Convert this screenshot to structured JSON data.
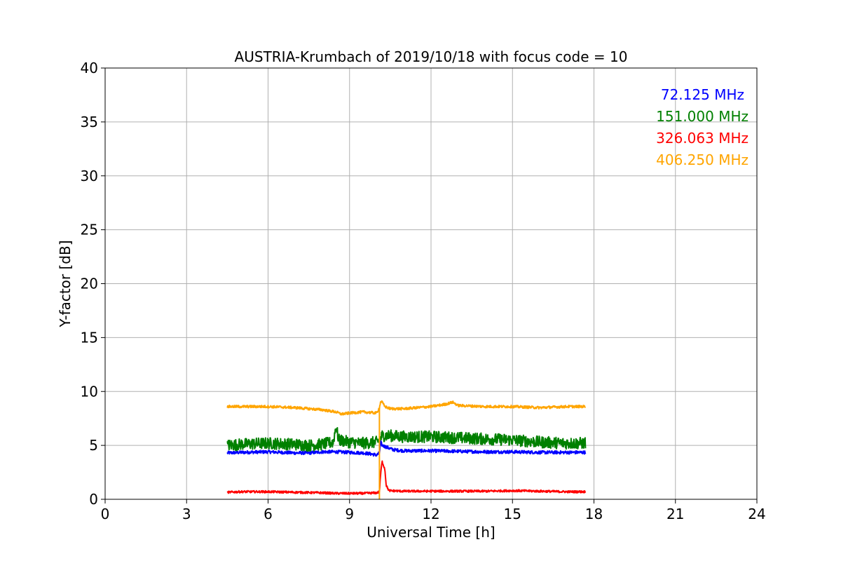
{
  "chart_data": {
    "type": "line",
    "title": "AUSTRIA-Krumbach of 2019/10/18 with focus code = 10",
    "xlabel": "Universal Time [h]",
    "ylabel": "Y-factor [dB]",
    "xlim": [
      0,
      24
    ],
    "ylim": [
      0,
      40
    ],
    "xticks": [
      0,
      3,
      6,
      9,
      12,
      15,
      18,
      21,
      24
    ],
    "yticks": [
      0,
      5,
      10,
      15,
      20,
      25,
      30,
      35,
      40
    ],
    "grid": true,
    "legend_position": "top-right",
    "series": [
      {
        "name": "72.125 MHz",
        "color": "#0000ff",
        "noise": 0.15,
        "x": [
          4.5,
          5.0,
          6.0,
          7.0,
          7.5,
          8.0,
          8.5,
          9.0,
          9.5,
          9.8,
          10.0,
          10.1,
          10.15,
          10.2,
          10.3,
          10.4,
          10.6,
          11.0,
          12.0,
          13.0,
          14.0,
          15.0,
          16.0,
          17.0,
          17.7
        ],
        "y": [
          4.3,
          4.35,
          4.4,
          4.3,
          4.3,
          4.4,
          4.4,
          4.35,
          4.3,
          4.2,
          4.1,
          4.3,
          5.3,
          5.0,
          4.9,
          4.8,
          4.6,
          4.5,
          4.5,
          4.45,
          4.4,
          4.4,
          4.35,
          4.35,
          4.35
        ]
      },
      {
        "name": "151.000 MHz",
        "color": "#008000",
        "noise": 0.55,
        "x": [
          4.5,
          5.0,
          6.0,
          7.0,
          7.5,
          8.0,
          8.4,
          8.5,
          8.6,
          9.0,
          9.5,
          10.0,
          10.1,
          10.2,
          10.5,
          11.0,
          12.0,
          13.0,
          14.0,
          15.0,
          16.0,
          17.0,
          17.7
        ],
        "y": [
          5.0,
          5.1,
          5.2,
          5.1,
          5.0,
          5.1,
          5.3,
          6.8,
          5.5,
          5.3,
          5.2,
          5.3,
          5.5,
          5.9,
          5.9,
          5.8,
          5.8,
          5.7,
          5.6,
          5.5,
          5.3,
          5.2,
          5.2
        ]
      },
      {
        "name": "326.063 MHz",
        "color": "#ff0000",
        "noise": 0.1,
        "x": [
          4.5,
          5.0,
          6.0,
          7.0,
          8.0,
          8.5,
          9.0,
          9.5,
          10.0,
          10.1,
          10.15,
          10.2,
          10.3,
          10.35,
          10.45,
          11.0,
          12.0,
          13.0,
          14.0,
          15.0,
          16.0,
          17.0,
          17.7
        ],
        "y": [
          0.65,
          0.7,
          0.7,
          0.65,
          0.6,
          0.55,
          0.55,
          0.55,
          0.6,
          0.7,
          2.5,
          3.5,
          2.8,
          1.3,
          0.8,
          0.75,
          0.75,
          0.75,
          0.75,
          0.8,
          0.75,
          0.7,
          0.7
        ]
      },
      {
        "name": "406.250 MHz",
        "color": "#ffa500",
        "noise": 0.12,
        "x": [
          4.5,
          5.0,
          6.0,
          7.0,
          7.5,
          8.0,
          8.5,
          8.7,
          9.0,
          9.5,
          10.0,
          10.1,
          10.15,
          10.2,
          10.3,
          10.5,
          11.0,
          12.0,
          12.5,
          12.8,
          13.0,
          14.0,
          15.0,
          16.0,
          17.0,
          17.7
        ],
        "y": [
          8.6,
          8.6,
          8.6,
          8.5,
          8.4,
          8.3,
          8.1,
          7.9,
          8.0,
          8.1,
          8.0,
          8.5,
          9.1,
          9.0,
          8.6,
          8.4,
          8.4,
          8.6,
          8.8,
          9.0,
          8.7,
          8.6,
          8.6,
          8.5,
          8.6,
          8.6
        ]
      }
    ]
  }
}
